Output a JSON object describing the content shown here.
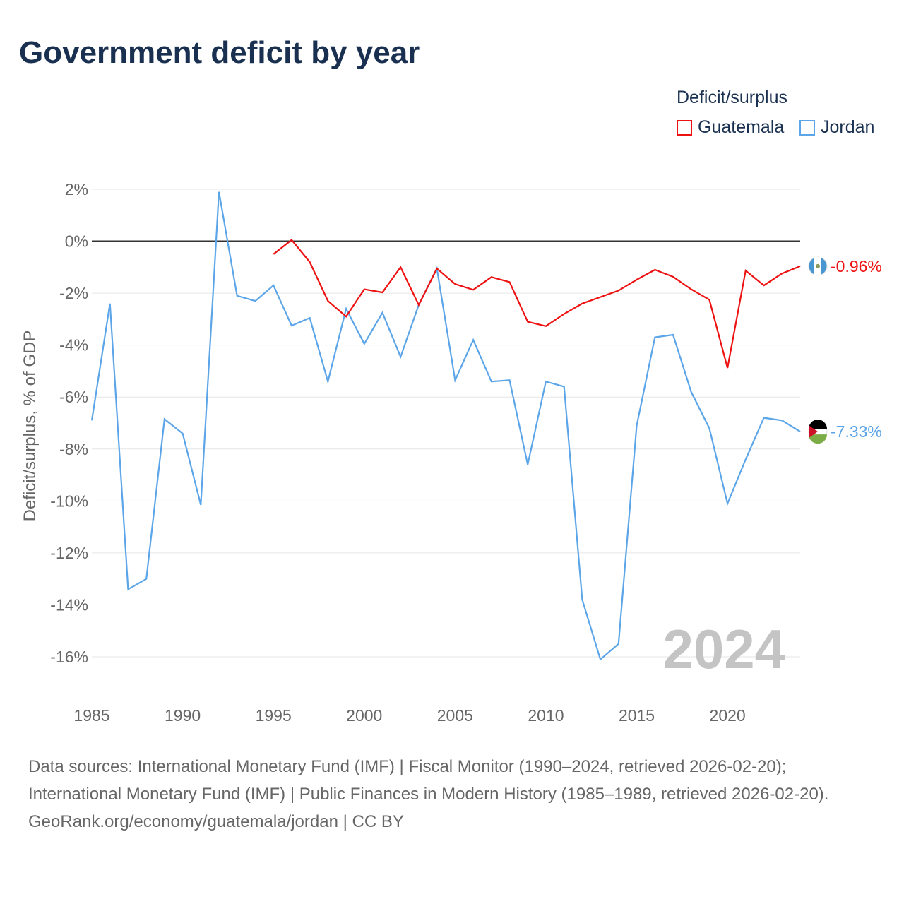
{
  "title": "Government deficit by year",
  "legend": {
    "title": "Deficit/surplus",
    "items": [
      {
        "name": "Guatemala",
        "color": "#ee1111"
      },
      {
        "name": "Jordan",
        "color": "#5ba5e8"
      }
    ]
  },
  "watermark_year": "2024",
  "source": {
    "line1": "Data sources: International Monetary Fund (IMF) | Fiscal Monitor (1990–2024, retrieved 2026-02-20); International Monetary Fund (IMF) | Public Finances in Modern History (1985–1989, retrieved 2026-02-20).",
    "line2": "GeoRank.org/economy/guatemala/jordan | CC BY"
  },
  "chart_data": {
    "type": "line",
    "title": "Government deficit by year",
    "ylabel": "Deficit/surplus, % of GDP",
    "xlabel": "",
    "xlim": [
      1985,
      2024
    ],
    "ylim": [
      -16,
      2
    ],
    "x_ticks": [
      "1985",
      "1990",
      "1995",
      "2000",
      "2005",
      "2010",
      "2015",
      "2020"
    ],
    "y_ticks": [
      {
        "v": 2,
        "label": "2%"
      },
      {
        "v": 0,
        "label": "0%"
      },
      {
        "v": -2,
        "label": "-2%"
      },
      {
        "v": -4,
        "label": "-4%"
      },
      {
        "v": -6,
        "label": "-6%"
      },
      {
        "v": -8,
        "label": "-8%"
      },
      {
        "v": -10,
        "label": "-10%"
      },
      {
        "v": -12,
        "label": "-12%"
      },
      {
        "v": -14,
        "label": "-14%"
      },
      {
        "v": -16,
        "label": "-16%"
      }
    ],
    "grid": true,
    "legend_position": "top-right",
    "series": [
      {
        "name": "Guatemala",
        "color": "#ee1111",
        "end_label": "-0.96%",
        "start_year": 1995,
        "values": [
          -0.5,
          0.05,
          -0.8,
          -2.3,
          -2.9,
          -1.85,
          -1.97,
          -1.0,
          -2.45,
          -1.05,
          -1.65,
          -1.87,
          -1.38,
          -1.57,
          -3.1,
          -3.27,
          -2.8,
          -2.4,
          -2.15,
          -1.9,
          -1.48,
          -1.1,
          -1.37,
          -1.85,
          -2.25,
          -4.88,
          -1.13,
          -1.7,
          -1.24,
          -0.96
        ]
      },
      {
        "name": "Jordan",
        "color": "#5ba5e8",
        "end_label": "-7.33%",
        "start_year": 1985,
        "values": [
          -6.9,
          -2.4,
          -13.4,
          -13.0,
          -6.85,
          -7.4,
          -10.15,
          1.9,
          -2.1,
          -2.3,
          -1.7,
          -3.25,
          -2.95,
          -5.4,
          -2.6,
          -3.95,
          -2.75,
          -4.45,
          -2.45,
          -1.05,
          -5.35,
          -3.8,
          -5.4,
          -5.35,
          -8.6,
          -5.4,
          -5.6,
          -13.8,
          -16.1,
          -15.5,
          -7.1,
          -3.7,
          -3.6,
          -5.8,
          -7.2,
          -10.1,
          -8.4,
          -6.8,
          -6.9,
          -7.33
        ]
      }
    ]
  }
}
